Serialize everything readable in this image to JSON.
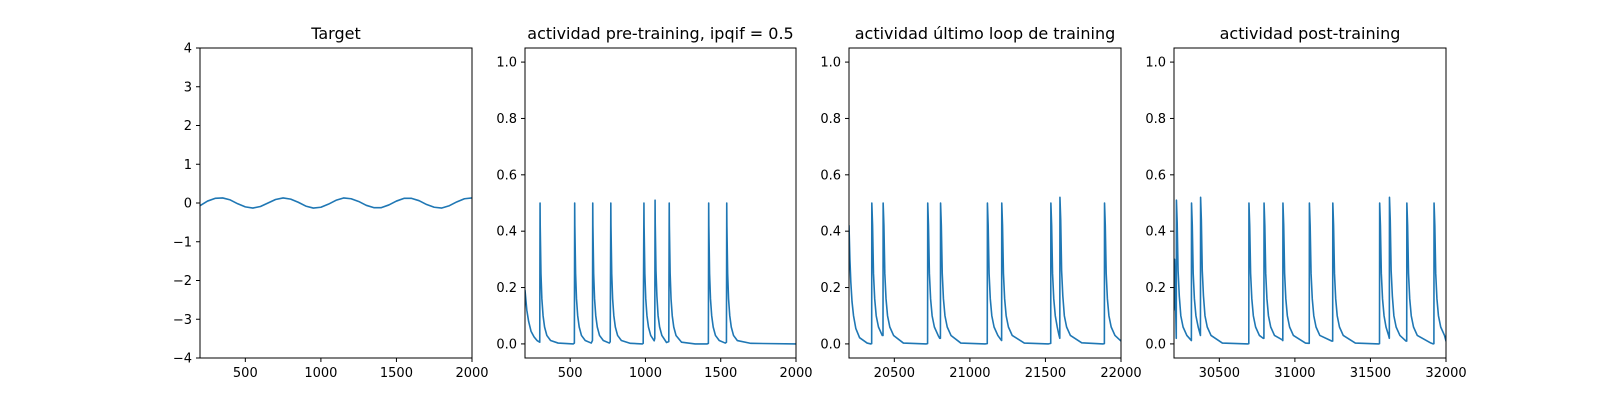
{
  "chart_data": [
    {
      "type": "line",
      "title": "Target",
      "xlabel": "",
      "ylabel": "",
      "xlim": [
        200,
        2000
      ],
      "ylim": [
        -4,
        4
      ],
      "xticks": [
        500,
        1000,
        1500,
        2000
      ],
      "xtick_labels": [
        "500",
        "1000",
        "1500",
        "2000"
      ],
      "yticks": [
        -4,
        -3,
        -2,
        -1,
        0,
        1,
        2,
        3,
        4
      ],
      "ytick_labels": [
        "−4",
        "−3",
        "−2",
        "−1",
        "0",
        "1",
        "2",
        "3",
        "4"
      ],
      "grid": false,
      "series": [
        {
          "color": "#1f77b4",
          "x": [
            200,
            250,
            300,
            350,
            400,
            450,
            500,
            550,
            600,
            650,
            700,
            750,
            800,
            850,
            900,
            950,
            1000,
            1050,
            1100,
            1150,
            1200,
            1250,
            1300,
            1350,
            1400,
            1450,
            1500,
            1550,
            1600,
            1650,
            1700,
            1750,
            1800,
            1850,
            1900,
            1950,
            2000
          ],
          "y": [
            -0.07,
            0.05,
            0.12,
            0.13,
            0.08,
            -0.02,
            -0.1,
            -0.13,
            -0.09,
            0.0,
            0.09,
            0.13,
            0.1,
            0.02,
            -0.08,
            -0.13,
            -0.11,
            -0.03,
            0.07,
            0.13,
            0.11,
            0.04,
            -0.06,
            -0.12,
            -0.12,
            -0.05,
            0.05,
            0.12,
            0.12,
            0.06,
            -0.04,
            -0.11,
            -0.13,
            -0.07,
            0.03,
            0.11,
            0.13
          ]
        }
      ]
    },
    {
      "type": "line",
      "title": "actividad pre-training, ipqif = 0.5",
      "xlabel": "",
      "ylabel": "",
      "xlim": [
        200,
        2000
      ],
      "ylim": [
        -0.05,
        1.05
      ],
      "xticks": [
        500,
        1000,
        1500,
        2000
      ],
      "xtick_labels": [
        "500",
        "1000",
        "1500",
        "2000"
      ],
      "yticks": [
        0.0,
        0.2,
        0.4,
        0.6,
        0.8,
        1.0
      ],
      "ytick_labels": [
        "0.0",
        "0.2",
        "0.4",
        "0.6",
        "0.8",
        "1.0"
      ],
      "grid": false,
      "series": [
        {
          "color": "#1f77b4",
          "x": [
            200,
            212,
            224,
            240,
            260,
            280,
            298,
            300,
            301,
            306,
            312,
            320,
            330,
            345,
            370,
            420,
            520,
            528,
            530,
            531,
            536,
            542,
            550,
            560,
            575,
            600,
            640,
            648,
            650,
            651,
            656,
            662,
            670,
            680,
            695,
            720,
            760,
            766,
            770,
            771,
            776,
            782,
            790,
            800,
            815,
            840,
            900,
            980,
            985,
            990,
            991,
            996,
            1002,
            1010,
            1020,
            1035,
            1058,
            1062,
            1064,
            1065,
            1070,
            1076,
            1084,
            1094,
            1109,
            1140,
            1155,
            1158,
            1159,
            1164,
            1170,
            1178,
            1188,
            1203,
            1240,
            1330,
            1410,
            1418,
            1420,
            1421,
            1426,
            1432,
            1440,
            1450,
            1465,
            1490,
            1530,
            1538,
            1540,
            1541,
            1546,
            1552,
            1560,
            1570,
            1585,
            1610,
            1700,
            2000
          ],
          "y": [
            0.19,
            0.12,
            0.08,
            0.045,
            0.025,
            0.012,
            0.006,
            0.5,
            0.42,
            0.25,
            0.16,
            0.1,
            0.06,
            0.03,
            0.012,
            0.003,
            0.0,
            0.003,
            0.5,
            0.42,
            0.25,
            0.16,
            0.1,
            0.06,
            0.03,
            0.012,
            0.003,
            0.012,
            0.5,
            0.42,
            0.25,
            0.16,
            0.1,
            0.06,
            0.03,
            0.012,
            0.003,
            0.008,
            0.5,
            0.42,
            0.25,
            0.16,
            0.1,
            0.06,
            0.03,
            0.012,
            0.002,
            0.0,
            0.002,
            0.5,
            0.42,
            0.25,
            0.16,
            0.1,
            0.06,
            0.03,
            0.011,
            0.02,
            0.51,
            0.43,
            0.26,
            0.17,
            0.1,
            0.06,
            0.03,
            0.005,
            0.008,
            0.5,
            0.42,
            0.25,
            0.16,
            0.1,
            0.06,
            0.03,
            0.006,
            0.0,
            0.0,
            0.002,
            0.5,
            0.42,
            0.25,
            0.16,
            0.1,
            0.06,
            0.03,
            0.012,
            0.003,
            0.006,
            0.5,
            0.42,
            0.25,
            0.16,
            0.1,
            0.06,
            0.03,
            0.012,
            0.002,
            0.0
          ]
        }
      ]
    },
    {
      "type": "line",
      "title": "actividad último loop de training",
      "xlabel": "",
      "ylabel": "",
      "xlim": [
        20200,
        22000
      ],
      "ylim": [
        -0.05,
        1.05
      ],
      "xticks": [
        20500,
        21000,
        21500,
        22000
      ],
      "xtick_labels": [
        "20500",
        "21000",
        "21500",
        "22000"
      ],
      "yticks": [
        0.0,
        0.2,
        0.4,
        0.6,
        0.8,
        1.0
      ],
      "ytick_labels": [
        "0.0",
        "0.2",
        "0.4",
        "0.6",
        "0.8",
        "1.0"
      ],
      "grid": false,
      "series": [
        {
          "color": "#1f77b4",
          "x": [
            20200,
            20206,
            20212,
            20220,
            20230,
            20245,
            20270,
            20320,
            20345,
            20350,
            20351,
            20356,
            20362,
            20370,
            20380,
            20395,
            20420,
            20425,
            20426,
            20431,
            20437,
            20445,
            20455,
            20470,
            20495,
            20560,
            20710,
            20720,
            20721,
            20726,
            20732,
            20740,
            20750,
            20765,
            20790,
            20800,
            20805,
            20806,
            20811,
            20817,
            20825,
            20835,
            20850,
            20875,
            20940,
            21100,
            21115,
            21116,
            21121,
            21127,
            21135,
            21145,
            21160,
            21185,
            21205,
            21210,
            21211,
            21216,
            21222,
            21230,
            21240,
            21255,
            21280,
            21360,
            21520,
            21535,
            21536,
            21541,
            21547,
            21555,
            21565,
            21578,
            21590,
            21595,
            21596,
            21601,
            21607,
            21615,
            21625,
            21640,
            21665,
            21740,
            21880,
            21890,
            21891,
            21896,
            21902,
            21910,
            21920,
            21935,
            21960,
            22000
          ],
          "y": [
            0.42,
            0.3,
            0.22,
            0.15,
            0.1,
            0.055,
            0.022,
            0.003,
            0.0,
            0.001,
            0.5,
            0.42,
            0.25,
            0.16,
            0.1,
            0.06,
            0.03,
            0.03,
            0.5,
            0.42,
            0.25,
            0.16,
            0.1,
            0.06,
            0.03,
            0.003,
            0.0,
            0.001,
            0.5,
            0.42,
            0.25,
            0.16,
            0.1,
            0.06,
            0.03,
            0.02,
            0.02,
            0.5,
            0.42,
            0.25,
            0.16,
            0.1,
            0.06,
            0.03,
            0.003,
            0.0,
            0.001,
            0.5,
            0.42,
            0.25,
            0.16,
            0.1,
            0.06,
            0.03,
            0.015,
            0.012,
            0.5,
            0.42,
            0.25,
            0.16,
            0.1,
            0.06,
            0.03,
            0.003,
            0.0,
            0.002,
            0.5,
            0.42,
            0.25,
            0.16,
            0.1,
            0.06,
            0.03,
            0.02,
            0.52,
            0.44,
            0.26,
            0.17,
            0.1,
            0.06,
            0.03,
            0.004,
            0.0,
            0.001,
            0.5,
            0.42,
            0.25,
            0.16,
            0.1,
            0.06,
            0.03,
            0.01
          ]
        }
      ]
    },
    {
      "type": "line",
      "title": "actividad post-training",
      "xlabel": "",
      "ylabel": "",
      "xlim": [
        30200,
        32000
      ],
      "ylim": [
        -0.05,
        1.05
      ],
      "xticks": [
        30500,
        31000,
        31500,
        32000
      ],
      "xtick_labels": [
        "30500",
        "31000",
        "31500",
        "32000"
      ],
      "yticks": [
        0.0,
        0.2,
        0.4,
        0.6,
        0.8,
        1.0
      ],
      "ytick_labels": [
        "0.0",
        "0.2",
        "0.4",
        "0.6",
        "0.8",
        "1.0"
      ],
      "grid": false,
      "series": [
        {
          "color": "#1f77b4",
          "x": [
            30200,
            30204,
            30210,
            30215,
            30216,
            30221,
            30227,
            30235,
            30245,
            30260,
            30285,
            30310,
            30315,
            30316,
            30321,
            30327,
            30335,
            30345,
            30360,
            30375,
            30376,
            30381,
            30387,
            30395,
            30405,
            30420,
            30445,
            30520,
            30690,
            30695,
            30696,
            30701,
            30707,
            30715,
            30725,
            30740,
            30765,
            30790,
            30795,
            30796,
            30801,
            30807,
            30815,
            30825,
            30840,
            30865,
            30915,
            30920,
            30921,
            30926,
            30932,
            30940,
            30950,
            30965,
            30990,
            31070,
            31090,
            31095,
            31096,
            31101,
            31107,
            31115,
            31125,
            31140,
            31165,
            31245,
            31250,
            31251,
            31256,
            31262,
            31270,
            31280,
            31295,
            31320,
            31400,
            31555,
            31560,
            31561,
            31566,
            31572,
            31580,
            31590,
            31603,
            31620,
            31625,
            31626,
            31631,
            31637,
            31645,
            31655,
            31670,
            31695,
            31735,
            31740,
            31741,
            31746,
            31752,
            31760,
            31770,
            31785,
            31810,
            31900,
            31915,
            31920,
            31921,
            31926,
            31932,
            31940,
            31950,
            31965,
            31990,
            32000
          ],
          "y": [
            0.12,
            0.3,
            0.15,
            0.02,
            0.51,
            0.43,
            0.26,
            0.17,
            0.1,
            0.06,
            0.03,
            0.015,
            0.012,
            0.5,
            0.42,
            0.25,
            0.16,
            0.1,
            0.06,
            0.03,
            0.52,
            0.44,
            0.26,
            0.17,
            0.1,
            0.06,
            0.03,
            0.003,
            0.0,
            0.001,
            0.5,
            0.42,
            0.25,
            0.16,
            0.1,
            0.06,
            0.03,
            0.02,
            0.02,
            0.5,
            0.42,
            0.25,
            0.16,
            0.1,
            0.06,
            0.03,
            0.015,
            0.012,
            0.5,
            0.42,
            0.25,
            0.16,
            0.1,
            0.06,
            0.03,
            0.003,
            0.002,
            0.002,
            0.5,
            0.42,
            0.25,
            0.16,
            0.1,
            0.06,
            0.03,
            0.01,
            0.01,
            0.5,
            0.42,
            0.25,
            0.16,
            0.1,
            0.06,
            0.03,
            0.003,
            0.0,
            0.001,
            0.5,
            0.42,
            0.25,
            0.16,
            0.1,
            0.06,
            0.03,
            0.02,
            0.52,
            0.44,
            0.26,
            0.17,
            0.1,
            0.06,
            0.03,
            0.01,
            0.01,
            0.5,
            0.42,
            0.25,
            0.16,
            0.1,
            0.06,
            0.03,
            0.003,
            0.0,
            0.001,
            0.5,
            0.42,
            0.25,
            0.16,
            0.1,
            0.06,
            0.03,
            0.01
          ]
        }
      ]
    }
  ]
}
